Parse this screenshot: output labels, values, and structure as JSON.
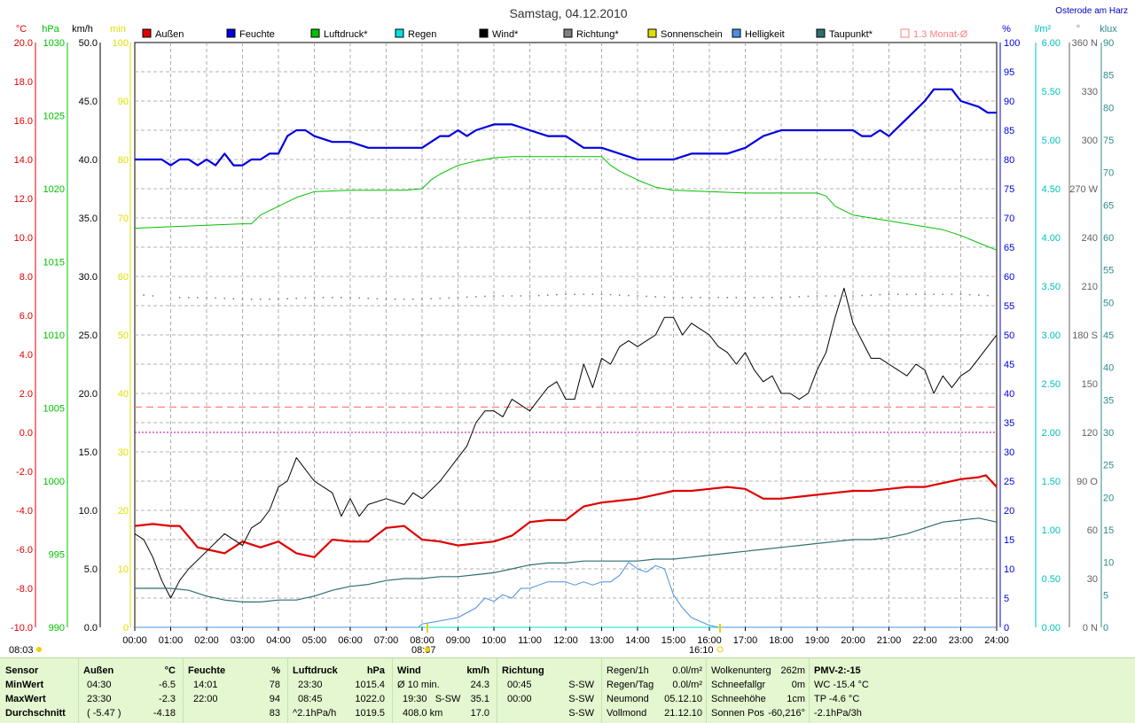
{
  "title": "Samstag, 04.12.2010",
  "location": "Osterode am Harz",
  "legend": [
    {
      "label": "Außen",
      "color": "#e00000"
    },
    {
      "label": "Feuchte",
      "color": "#0000e0"
    },
    {
      "label": "Luftdruck*",
      "color": "#00c000"
    },
    {
      "label": "Regen",
      "color": "#00e0e0"
    },
    {
      "label": "Wind*",
      "color": "#000000"
    },
    {
      "label": "Richtung*",
      "color": "#808080"
    },
    {
      "label": "Sonnenschein",
      "color": "#e0e000"
    },
    {
      "label": "Helligkeit",
      "color": "#4a90e2"
    },
    {
      "label": "Taupunkt*",
      "color": "#2e6f6f"
    },
    {
      "label": "1.3 Monat-Ø",
      "color": "#ff8080"
    }
  ],
  "sunrise": "08:07",
  "sunset": "16:10",
  "left_first_time": "08:03",
  "units": {
    "temp": "°C",
    "pressure": "hPa",
    "wind": "km/h",
    "sun": "min",
    "humidity": "%",
    "rain": "l/m²",
    "direction": "°",
    "light": "klux"
  },
  "axis_ticks": {
    "temp": [
      "20.0",
      "18.0",
      "16.0",
      "14.0",
      "12.0",
      "10.0",
      "8.0",
      "6.0",
      "4.0",
      "2.0",
      "0.0",
      "-2.0",
      "-4.0",
      "-6.0",
      "-8.0",
      "-10.0"
    ],
    "pressure": [
      "1030",
      "1025",
      "1020",
      "1015",
      "1010",
      "1005",
      "1000",
      "995",
      "990"
    ],
    "wind": [
      "50.0",
      "45.0",
      "40.0",
      "35.0",
      "30.0",
      "25.0",
      "20.0",
      "15.0",
      "10.0",
      "5.0",
      "0.0"
    ],
    "sun": [
      "100",
      "90",
      "80",
      "70",
      "60",
      "50",
      "40",
      "30",
      "20",
      "10",
      "0"
    ],
    "humidity": [
      "100",
      "95",
      "90",
      "85",
      "80",
      "75",
      "70",
      "65",
      "60",
      "55",
      "50",
      "45",
      "40",
      "35",
      "30",
      "25",
      "20",
      "15",
      "10",
      "5",
      "0"
    ],
    "rain": [
      "6.00",
      "5.50",
      "5.00",
      "4.50",
      "4.00",
      "3.50",
      "3.00",
      "2.50",
      "2.00",
      "1.50",
      "1.00",
      "0.50",
      "0.00"
    ],
    "direction": [
      "360 N",
      "330",
      "300",
      "270 W",
      "240",
      "210",
      "180 S",
      "150",
      "120",
      "90 O",
      "60",
      "30",
      "0 N"
    ],
    "light": [
      "90",
      "85",
      "80",
      "75",
      "70",
      "65",
      "60",
      "55",
      "50",
      "45",
      "40",
      "35",
      "30",
      "25",
      "20",
      "15",
      "10",
      "5",
      "0"
    ]
  },
  "chart_data": {
    "type": "line",
    "title": "Samstag, 04.12.2010",
    "x_unit": "hour of day",
    "x_ticks": [
      "00:00",
      "01:00",
      "02:00",
      "03:00",
      "04:00",
      "05:00",
      "06:00",
      "07:00",
      "08:00",
      "09:00",
      "10:00",
      "11:00",
      "12:00",
      "13:00",
      "14:00",
      "15:00",
      "16:00",
      "17:00",
      "18:00",
      "19:00",
      "20:00",
      "21:00",
      "22:00",
      "23:00",
      "24:00"
    ],
    "xlim": [
      0,
      24
    ],
    "monthly_avg_temp": 1.3,
    "series": [
      {
        "name": "Außen",
        "axis": "temp",
        "color": "#e00000",
        "ylim": [
          -10,
          20
        ],
        "x": [
          0,
          0.5,
          1,
          1.25,
          1.75,
          2,
          2.5,
          3,
          3.5,
          4,
          4.5,
          5,
          5.5,
          6,
          6.5,
          7,
          7.5,
          8,
          8.5,
          9,
          9.5,
          10,
          10.5,
          11,
          11.5,
          12,
          12.5,
          13,
          13.5,
          14,
          14.5,
          15,
          15.5,
          16,
          16.5,
          17,
          17.5,
          18,
          18.5,
          19,
          19.5,
          20,
          20.5,
          21,
          21.5,
          22,
          22.5,
          23,
          23.5,
          23.7,
          24
        ],
        "y": [
          -4.8,
          -4.7,
          -4.8,
          -4.8,
          -5.9,
          -6.0,
          -6.2,
          -5.6,
          -5.9,
          -5.6,
          -6.2,
          -6.4,
          -5.5,
          -5.6,
          -5.6,
          -4.9,
          -4.8,
          -5.5,
          -5.6,
          -5.8,
          -5.7,
          -5.6,
          -5.3,
          -4.6,
          -4.5,
          -4.5,
          -3.8,
          -3.6,
          -3.5,
          -3.4,
          -3.2,
          -3.0,
          -3.0,
          -2.9,
          -2.8,
          -2.9,
          -3.4,
          -3.4,
          -3.3,
          -3.2,
          -3.1,
          -3.0,
          -3.0,
          -2.9,
          -2.8,
          -2.8,
          -2.6,
          -2.4,
          -2.3,
          -2.2,
          -2.8
        ]
      },
      {
        "name": "Feuchte",
        "axis": "humidity",
        "color": "#0000e0",
        "ylim": [
          0,
          100
        ],
        "x": [
          0,
          0.75,
          1,
          1.25,
          1.5,
          1.75,
          2,
          2.25,
          2.5,
          2.75,
          3,
          3.25,
          3.5,
          3.75,
          4,
          4.25,
          4.5,
          4.75,
          5,
          5.5,
          6,
          6.5,
          7,
          7.5,
          8,
          8.25,
          8.5,
          8.75,
          9,
          9.25,
          9.5,
          10,
          10.5,
          11,
          11.5,
          12,
          12.5,
          13,
          13.5,
          14,
          14.5,
          15,
          15.5,
          16,
          16.5,
          17,
          17.5,
          18,
          18.5,
          19,
          19.5,
          20,
          20.25,
          20.5,
          20.75,
          21,
          21.5,
          22,
          22.25,
          22.75,
          23,
          23.5,
          23.75,
          24
        ],
        "y": [
          80,
          80,
          79,
          80,
          80,
          79,
          80,
          79,
          81,
          79,
          79,
          80,
          80,
          81,
          81,
          84,
          85,
          85,
          84,
          83,
          83,
          82,
          82,
          82,
          82,
          83,
          84,
          84,
          85,
          84,
          85,
          86,
          86,
          85,
          84,
          84,
          82,
          82,
          81,
          80,
          80,
          80,
          81,
          81,
          81,
          82,
          84,
          85,
          85,
          85,
          85,
          85,
          84,
          84,
          85,
          84,
          87,
          90,
          92,
          92,
          90,
          89,
          88,
          88
        ]
      },
      {
        "name": "Luftdruck*",
        "axis": "pressure",
        "color": "#00c000",
        "ylim": [
          990,
          1030
        ],
        "x": [
          0,
          1,
          2,
          3,
          3.25,
          3.5,
          4,
          4.5,
          5,
          6,
          7,
          7.5,
          8,
          8.25,
          8.5,
          9,
          9.5,
          10,
          10.5,
          11,
          12,
          13,
          13.25,
          13.5,
          14,
          14.5,
          15,
          16,
          17,
          18,
          19,
          19.25,
          19.5,
          20,
          21,
          22,
          22.5,
          23,
          23.5,
          24
        ],
        "y": [
          1017.3,
          1017.4,
          1017.5,
          1017.6,
          1017.6,
          1018.2,
          1018.8,
          1019.4,
          1019.8,
          1019.9,
          1019.9,
          1019.9,
          1020.0,
          1020.6,
          1021.0,
          1021.6,
          1021.9,
          1022.1,
          1022.2,
          1022.2,
          1022.2,
          1022.2,
          1021.6,
          1021.2,
          1020.6,
          1020.1,
          1019.9,
          1019.8,
          1019.7,
          1019.7,
          1019.7,
          1019.5,
          1018.8,
          1018.2,
          1017.8,
          1017.4,
          1017.2,
          1016.8,
          1016.3,
          1015.8
        ]
      },
      {
        "name": "Regen",
        "axis": "rain",
        "color": "#00e0e0",
        "ylim": [
          0,
          6
        ],
        "x": [
          0,
          24
        ],
        "y": [
          0,
          0
        ]
      },
      {
        "name": "Wind*",
        "axis": "wind",
        "color": "#000000",
        "ylim": [
          0,
          50
        ],
        "x": [
          0,
          0.25,
          0.5,
          0.75,
          1,
          1.25,
          1.5,
          2,
          2.5,
          3,
          3.25,
          3.5,
          3.75,
          4,
          4.25,
          4.5,
          4.75,
          5,
          5.25,
          5.5,
          5.75,
          6,
          6.25,
          6.5,
          7,
          7.5,
          7.75,
          8,
          8.5,
          9,
          9.25,
          9.5,
          9.75,
          10,
          10.25,
          10.5,
          10.75,
          11,
          11.25,
          11.5,
          11.75,
          12,
          12.25,
          12.5,
          12.75,
          13,
          13.25,
          13.5,
          13.75,
          14,
          14.25,
          14.5,
          14.75,
          15,
          15.25,
          15.5,
          15.75,
          16,
          16.25,
          16.5,
          16.75,
          17,
          17.25,
          17.5,
          17.75,
          18,
          18.25,
          18.5,
          18.75,
          19,
          19.25,
          19.5,
          19.75,
          20,
          20.25,
          20.5,
          20.75,
          21,
          21.25,
          21.5,
          21.75,
          22,
          22.25,
          22.5,
          22.75,
          23,
          23.25,
          23.5,
          23.75,
          24
        ],
        "y": [
          8.0,
          7.5,
          6.0,
          4.0,
          2.5,
          4.0,
          5.0,
          6.5,
          8.0,
          7.0,
          8.5,
          9.0,
          10.0,
          12.0,
          12.5,
          14.5,
          13.5,
          12.5,
          12.0,
          11.5,
          9.5,
          11.0,
          9.5,
          10.5,
          11.0,
          10.5,
          11.5,
          11.0,
          12.5,
          14.5,
          15.5,
          17.5,
          18.5,
          18.5,
          18.0,
          19.5,
          19.0,
          18.5,
          19.5,
          20.5,
          21.0,
          19.5,
          19.5,
          22.5,
          20.5,
          23.0,
          22.5,
          24.0,
          24.5,
          24.0,
          24.5,
          25.0,
          26.5,
          26.5,
          25.0,
          26.0,
          25.5,
          25.0,
          24.0,
          23.5,
          22.5,
          23.5,
          22.0,
          21.0,
          21.5,
          20.0,
          20.0,
          19.5,
          20.0,
          22.0,
          23.5,
          26.5,
          29.0,
          26.0,
          24.5,
          23.0,
          23.0,
          22.5,
          22.0,
          21.5,
          22.5,
          22.0,
          20.0,
          21.5,
          20.5,
          21.5,
          22.0,
          23.0,
          24.0,
          25.0
        ]
      },
      {
        "name": "Richtung*",
        "axis": "direction",
        "color": "#808080",
        "ylim": [
          0,
          360
        ],
        "x": [
          0,
          1,
          2,
          3,
          4,
          5,
          6,
          7,
          8,
          9,
          10,
          11,
          12,
          13,
          14,
          15,
          16,
          17,
          18,
          19,
          20,
          21,
          22,
          23,
          24
        ],
        "y": [
          205,
          203,
          203,
          202,
          202,
          203,
          203,
          202,
          202,
          203,
          204,
          204,
          205,
          205,
          204,
          203,
          203,
          203,
          203,
          204,
          204,
          205,
          205,
          205,
          204
        ]
      },
      {
        "name": "Helligkeit",
        "axis": "light",
        "color": "#4a90e2",
        "ylim": [
          0,
          90
        ],
        "x": [
          0,
          7.9,
          8,
          8.5,
          9,
          9.5,
          9.75,
          10,
          10.25,
          10.5,
          10.75,
          11,
          11.25,
          11.5,
          11.75,
          12,
          12.25,
          12.5,
          12.75,
          13,
          13.25,
          13.5,
          13.75,
          14,
          14.25,
          14.5,
          14.75,
          15,
          15.25,
          15.5,
          16,
          16.25,
          24
        ],
        "y": [
          0,
          0,
          0.5,
          1.0,
          1.5,
          3.0,
          4.5,
          4.0,
          5.0,
          4.5,
          6.0,
          6.0,
          6.5,
          7.0,
          7.0,
          7.0,
          6.5,
          7.0,
          6.5,
          7.0,
          7.0,
          8.0,
          10.0,
          9.0,
          8.5,
          9.5,
          9.0,
          5.0,
          3.0,
          1.5,
          0.3,
          0,
          0
        ]
      },
      {
        "name": "Taupunkt*",
        "axis": "temp",
        "color": "#2e6f6f",
        "ylim": [
          -10,
          20
        ],
        "x": [
          0,
          1,
          1.5,
          2,
          2.5,
          3,
          3.5,
          4,
          4.5,
          5,
          5.5,
          6,
          6.5,
          7,
          7.5,
          8,
          8.5,
          9,
          9.5,
          10,
          10.5,
          11,
          11.5,
          12,
          12.5,
          13,
          13.5,
          14,
          14.5,
          15,
          15.5,
          16,
          16.5,
          17,
          17.5,
          18,
          18.5,
          19,
          19.5,
          20,
          20.5,
          21,
          21.5,
          22,
          22.5,
          23,
          23.5,
          24
        ],
        "y": [
          -8.0,
          -8.0,
          -8.1,
          -8.4,
          -8.6,
          -8.7,
          -8.7,
          -8.6,
          -8.6,
          -8.4,
          -8.1,
          -7.9,
          -7.8,
          -7.6,
          -7.5,
          -7.5,
          -7.4,
          -7.4,
          -7.3,
          -7.2,
          -7.0,
          -6.8,
          -6.7,
          -6.7,
          -6.6,
          -6.6,
          -6.6,
          -6.6,
          -6.5,
          -6.5,
          -6.4,
          -6.3,
          -6.2,
          -6.1,
          -6.0,
          -5.9,
          -5.8,
          -5.7,
          -5.6,
          -5.5,
          -5.5,
          -5.4,
          -5.2,
          -4.9,
          -4.6,
          -4.5,
          -4.4,
          -4.6
        ]
      }
    ]
  },
  "stats": {
    "row_labels": [
      "Sensor",
      "MinWert",
      "MaxWert",
      "Durchschnitt"
    ],
    "aussen": {
      "title": "Außen",
      "unit": "°C",
      "rows": [
        [
          "04:30",
          "-6.5"
        ],
        [
          "23:30",
          "-2.3"
        ],
        [
          "( -5.47 )",
          "-4.18"
        ]
      ]
    },
    "feuchte": {
      "title": "Feuchte",
      "unit": "%",
      "rows": [
        [
          "14:01",
          "78"
        ],
        [
          "22:00",
          "94"
        ],
        [
          "",
          "83"
        ]
      ]
    },
    "luftdruck": {
      "title": "Luftdruck",
      "unit": "hPa",
      "rows": [
        [
          "23:30",
          "1015.4"
        ],
        [
          "08:45",
          "1022.0"
        ],
        [
          "^2.1hPa/h",
          "1019.5"
        ]
      ]
    },
    "wind": {
      "title": "Wind",
      "unit": "km/h",
      "rows": [
        [
          "Ø 10 min.",
          "24.3"
        ],
        [
          "19:30   S-SW",
          "35.1"
        ],
        [
          "408.0 km",
          "17.0"
        ]
      ]
    },
    "richtung": {
      "title": "Richtung",
      "rows": [
        [
          "00:45",
          "S-SW"
        ],
        [
          "00:00",
          "S-SW"
        ],
        [
          "",
          "S-SW"
        ]
      ]
    },
    "regen": {
      "rows": [
        [
          "Regen/1h",
          "0.0l/m²"
        ],
        [
          "Regen/Tag",
          "0.0l/m²"
        ],
        [
          "Neumond",
          "05.12.10"
        ],
        [
          "Vollmond",
          "21.12.10"
        ]
      ]
    },
    "wolken": {
      "rows": [
        [
          "Wolkenunterg",
          "262m"
        ],
        [
          "Schneefallgr",
          "0m"
        ],
        [
          "Schneehöhe",
          "1cm"
        ],
        [
          "Sonnen Pos",
          "-60,216°"
        ]
      ]
    },
    "pmv": {
      "rows": [
        "PMV-2:-15",
        "WC -15.4 °C",
        "TP -4.6 °C",
        "-2.1hPa/3h"
      ]
    }
  }
}
